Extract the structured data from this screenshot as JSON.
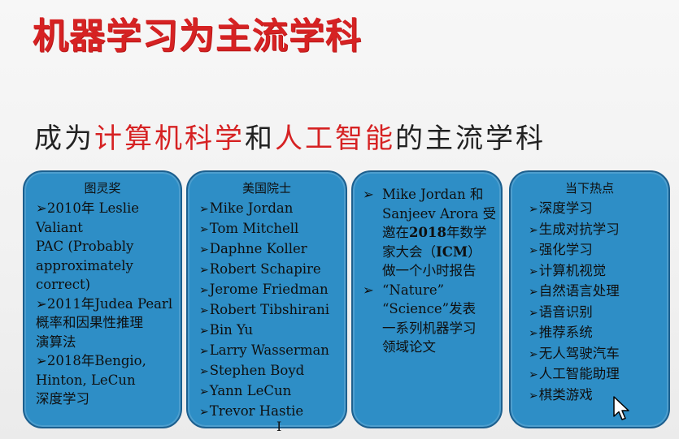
{
  "title": "机器学习为主流学科",
  "headline": {
    "part1": "成为",
    "part2": "计算机科学",
    "part3": "和",
    "part4": "人工智能",
    "part5": "的主流学科"
  },
  "cards": [
    {
      "title": "图灵奖",
      "lines": [
        {
          "arrow": "➢",
          "text": "2010年 Leslie"
        },
        {
          "arrow": "",
          "text": "Valiant"
        },
        {
          "arrow": "",
          "text": "PAC (Probably"
        },
        {
          "arrow": "",
          "text": "approximately"
        },
        {
          "arrow": "",
          "text": "correct)"
        },
        {
          "arrow": "➢",
          "text": "2011年Judea Pearl"
        },
        {
          "arrow": "",
          "text": "概率和因果性推理"
        },
        {
          "arrow": "",
          "text": "演算法"
        },
        {
          "arrow": "➢",
          "text": "2018年Bengio,"
        },
        {
          "arrow": "",
          "text": "Hinton, LeCun"
        },
        {
          "arrow": "",
          "text": "深度学习"
        }
      ]
    },
    {
      "title": "美国院士",
      "items": [
        "Mike Jordan",
        "Tom Mitchell",
        "Daphne Koller",
        "Robert Schapire",
        "Jerome Friedman",
        "Robert Tibshirani",
        "Bin Yu",
        "Larry Wasserman",
        "Stephen Boyd",
        "Yann LeCun",
        "Trevor Hastie"
      ]
    },
    {
      "blocks": [
        {
          "lines": [
            {
              "arrow": "➢",
              "parts": [
                "Mike Jordan 和"
              ]
            },
            {
              "arrow": "",
              "parts": [
                "Sanjeev Arora 受"
              ]
            },
            {
              "arrow": "",
              "parts": [
                "邀在",
                "2018",
                "年数学"
              ]
            },
            {
              "arrow": "",
              "parts": [
                "家大会（",
                "ICM",
                "）"
              ]
            },
            {
              "arrow": "",
              "parts": [
                "做一个小时报告"
              ]
            }
          ]
        },
        {
          "lines": [
            {
              "arrow": "➢",
              "parts": [
                "“Nature”"
              ]
            },
            {
              "arrow": "",
              "parts": [
                "“Science”发表"
              ]
            },
            {
              "arrow": "",
              "parts": [
                "一系列机器学习"
              ]
            },
            {
              "arrow": "",
              "parts": [
                "领域论文"
              ]
            }
          ]
        }
      ]
    },
    {
      "title": "当下热点",
      "items": [
        "深度学习",
        "生成对抗学习",
        "强化学习",
        "计算机视觉",
        "自然语言处理",
        "语音识别",
        "推荐系统",
        "无人驾驶汽车",
        "人工智能助理",
        "棋类游戏"
      ]
    }
  ],
  "bullet_glyph": "➢",
  "colors": {
    "title_red": "#d62223",
    "card_blue": "#2e8ec6",
    "card_border": "#1c5f8e"
  },
  "cursor_icon": "arrow-cursor-icon",
  "text_cursor_icon": "ibeam-cursor-icon",
  "ibeam_glyph": "I"
}
